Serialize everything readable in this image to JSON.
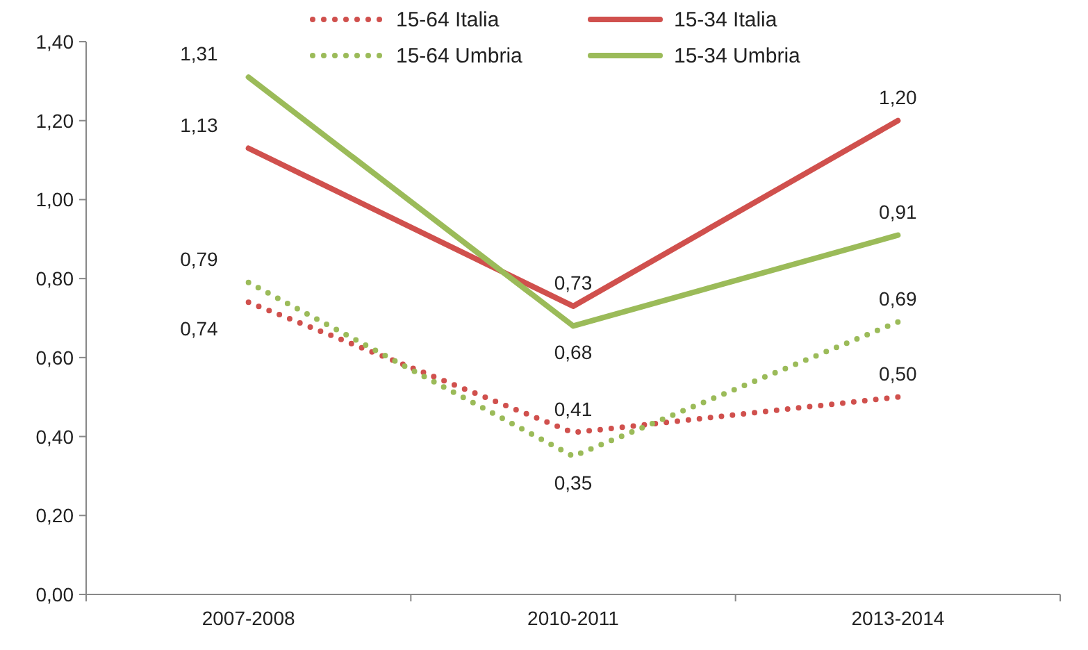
{
  "chart_data": {
    "type": "line",
    "categories": [
      "2007-2008",
      "2010-2011",
      "2013-2014"
    ],
    "series": [
      {
        "name": "15-64 Italia",
        "color": "#d0504d",
        "values": [
          0.74,
          0.41,
          0.5
        ],
        "line_style": "dotted",
        "value_labels": [
          "0,74",
          "0,41",
          "0,50"
        ]
      },
      {
        "name": "15-34 Italia",
        "color": "#d0504d",
        "values": [
          1.13,
          0.73,
          1.2
        ],
        "line_style": "solid",
        "value_labels": [
          "1,13",
          "0,73",
          "1,20"
        ]
      },
      {
        "name": "15-64 Umbria",
        "color": "#9bbb59",
        "values": [
          0.79,
          0.35,
          0.69
        ],
        "line_style": "dotted",
        "value_labels": [
          "0,79",
          "0,35",
          "0,69"
        ]
      },
      {
        "name": "15-34 Umbria",
        "color": "#9bbb59",
        "values": [
          1.31,
          0.68,
          0.91
        ],
        "line_style": "solid",
        "value_labels": [
          "1,31",
          "0,68",
          "0,91"
        ]
      }
    ],
    "ylim": [
      0,
      1.4
    ],
    "yticks": [
      {
        "value": 0,
        "label": "0,00"
      },
      {
        "value": 0.2,
        "label": "0,20"
      },
      {
        "value": 0.4,
        "label": "0,40"
      },
      {
        "value": 0.6,
        "label": "0,60"
      },
      {
        "value": 0.8,
        "label": "0,80"
      },
      {
        "value": 1,
        "label": "1,00"
      },
      {
        "value": 1.2,
        "label": "1,20"
      },
      {
        "value": 1.4,
        "label": "1,40"
      }
    ],
    "grid": false,
    "legend": "top",
    "marker": "none"
  }
}
